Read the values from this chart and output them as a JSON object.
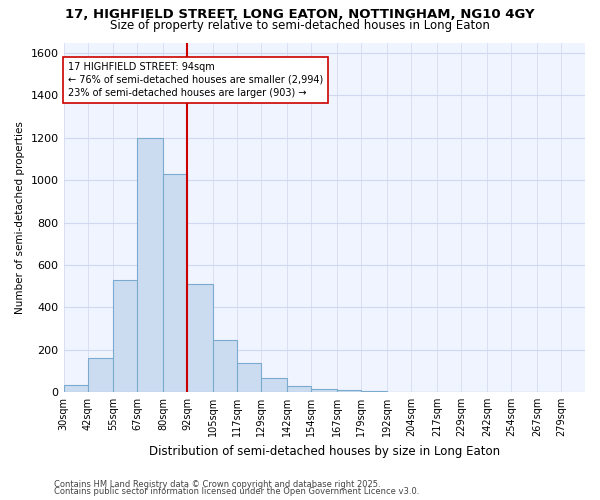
{
  "title1": "17, HIGHFIELD STREET, LONG EATON, NOTTINGHAM, NG10 4GY",
  "title2": "Size of property relative to semi-detached houses in Long Eaton",
  "xlabel": "Distribution of semi-detached houses by size in Long Eaton",
  "ylabel": "Number of semi-detached properties",
  "annotation_title": "17 HIGHFIELD STREET: 94sqm",
  "annotation_line1": "← 76% of semi-detached houses are smaller (2,994)",
  "annotation_line2": "23% of semi-detached houses are larger (903) →",
  "footer1": "Contains HM Land Registry data © Crown copyright and database right 2025.",
  "footer2": "Contains public sector information licensed under the Open Government Licence v3.0.",
  "bar_edges": [
    30,
    42,
    55,
    67,
    80,
    92,
    105,
    117,
    129,
    142,
    154,
    167,
    179,
    192,
    204,
    217,
    229,
    242,
    254,
    267,
    279
  ],
  "bar_heights": [
    35,
    160,
    530,
    1200,
    1030,
    510,
    245,
    135,
    65,
    30,
    15,
    8,
    4,
    2,
    1,
    1,
    0,
    0,
    0,
    0
  ],
  "bar_color": "#ccdcf0",
  "bar_edge_color": "#7aabcf",
  "vline_color": "#cc0000",
  "vline_x": 92,
  "bg_color": "#ffffff",
  "plot_bg_color": "#f0f4ff",
  "grid_color": "#d0d8f0",
  "ylim": [
    0,
    1650
  ],
  "yticks": [
    0,
    200,
    400,
    600,
    800,
    1000,
    1200,
    1400,
    1600
  ]
}
